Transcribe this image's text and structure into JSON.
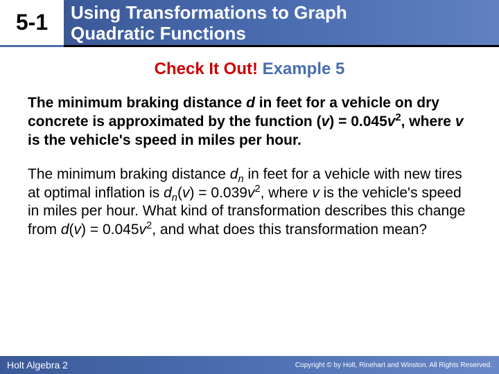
{
  "header": {
    "section_number": "5-1",
    "title_line1": "Using Transformations to Graph",
    "title_line2": "Quadratic Functions",
    "bg_gradient_start": "#3b5998",
    "bg_gradient_end": "#6080c0",
    "underline_color": "#000000"
  },
  "callout": {
    "red_text": "Check It Out!",
    "blue_text": "Example 5",
    "red_color": "#cc0000",
    "blue_color": "#4a6db0",
    "fontsize": 24
  },
  "body": {
    "para1_parts": {
      "t1": "The minimum braking distance ",
      "d": "d",
      "t2": " in feet for a vehicle on dry concrete is approximated by the function (",
      "v1": "v",
      "t3": ") = 0.045",
      "v2": "v",
      "sup1": "2",
      "t4": ", where ",
      "v3": "v",
      "t5": " is the vehicle's speed in miles per hour."
    },
    "para2_parts": {
      "t1": "The minimum braking distance ",
      "dn": "d",
      "sub_n1": "n",
      "t2": " in feet for a vehicle with new tires at optimal inflation is ",
      "dn2": "d",
      "sub_n2": "n",
      "t3": "(",
      "v1": "v",
      "t4": ") = 0.039",
      "v2": "v",
      "sup1": "2",
      "t5": ", where ",
      "v3": "v",
      "t6": " is the vehicle's speed in miles per hour. What kind of transformation describes this change from ",
      "d2": "d",
      "t7": "(",
      "v4": "v",
      "t8": ") = 0.045",
      "v5": "v",
      "sup2": "2",
      "t9": ", and what does this transformation mean?"
    },
    "fontsize": 21,
    "text_color": "#000000"
  },
  "footer": {
    "left_text": "Holt Algebra 2",
    "right_text": "Copyright © by Holt, Rinehart and Winston. All Rights Reserved.",
    "bg_gradient_start": "#3b5998",
    "bg_gradient_end": "#6a88c8"
  }
}
